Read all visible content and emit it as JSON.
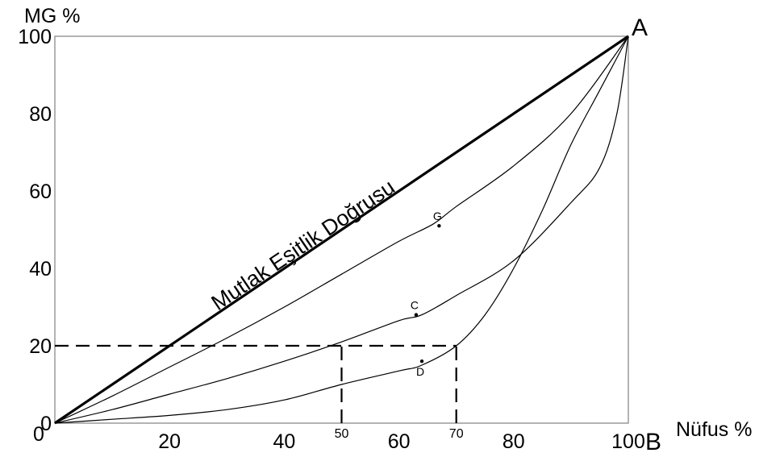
{
  "chart_data": {
    "type": "line",
    "ylabel": "MG %",
    "xlabel": "Nüfus %",
    "xlim": [
      0,
      100
    ],
    "ylim": [
      0,
      100
    ],
    "x_ticks": [
      {
        "value": 0,
        "label": "0"
      },
      {
        "value": 20,
        "label": "20"
      },
      {
        "value": 40,
        "label": "40"
      },
      {
        "value": 60,
        "label": "60"
      },
      {
        "value": 80,
        "label": "80"
      },
      {
        "value": 100,
        "label": "100"
      }
    ],
    "x_marked_ticks": [
      {
        "value": 50,
        "label": "50"
      },
      {
        "value": 70,
        "label": "70"
      }
    ],
    "y_ticks": [
      {
        "value": 0,
        "label": "0"
      },
      {
        "value": 20,
        "label": "20"
      },
      {
        "value": 40,
        "label": "40"
      },
      {
        "value": 60,
        "label": "60"
      },
      {
        "value": 80,
        "label": "80"
      },
      {
        "value": 100,
        "label": "100"
      }
    ],
    "corner_labels": {
      "top_right": "A",
      "bottom_right": "B"
    },
    "equality_line": {
      "label": "Mutlak Eşitlik Doğrusu",
      "points": [
        [
          0,
          0
        ],
        [
          100,
          100
        ]
      ]
    },
    "curves": [
      {
        "id": "G",
        "points": [
          [
            0,
            0
          ],
          [
            10,
            7
          ],
          [
            20,
            14.5
          ],
          [
            30,
            22
          ],
          [
            40,
            30
          ],
          [
            50,
            38.5
          ],
          [
            60,
            47
          ],
          [
            66,
            51.5
          ],
          [
            70,
            56
          ],
          [
            80,
            66.5
          ],
          [
            90,
            80
          ],
          [
            100,
            100
          ]
        ]
      },
      {
        "id": "C",
        "points": [
          [
            0,
            0
          ],
          [
            10,
            3.5
          ],
          [
            20,
            7.5
          ],
          [
            30,
            11.5
          ],
          [
            40,
            16
          ],
          [
            50,
            21
          ],
          [
            60,
            26.5
          ],
          [
            64,
            28
          ],
          [
            70,
            33
          ],
          [
            80,
            42
          ],
          [
            90,
            57
          ],
          [
            95,
            66
          ],
          [
            98,
            80
          ],
          [
            100,
            100
          ]
        ]
      },
      {
        "id": "D",
        "points": [
          [
            0,
            0
          ],
          [
            10,
            1
          ],
          [
            20,
            2
          ],
          [
            30,
            3.5
          ],
          [
            40,
            6
          ],
          [
            50,
            10
          ],
          [
            60,
            13.5
          ],
          [
            64,
            15
          ],
          [
            70,
            20
          ],
          [
            75,
            28
          ],
          [
            80,
            40
          ],
          [
            85,
            55
          ],
          [
            90,
            72
          ],
          [
            95,
            86
          ],
          [
            100,
            100
          ]
        ]
      }
    ],
    "point_markers": [
      {
        "label": "G",
        "x": 67,
        "y": 51
      },
      {
        "label": "C",
        "x": 63,
        "y": 28
      },
      {
        "label": "D",
        "x": 64,
        "y": 16
      }
    ],
    "reference_lines": [
      {
        "style": "dashed",
        "points": [
          [
            0,
            20
          ],
          [
            70,
            20
          ]
        ]
      },
      {
        "style": "dashed",
        "points": [
          [
            50,
            0
          ],
          [
            50,
            20
          ]
        ]
      },
      {
        "style": "dashed",
        "points": [
          [
            70,
            0
          ],
          [
            70,
            20
          ]
        ]
      }
    ],
    "grid": false,
    "frame": true
  }
}
